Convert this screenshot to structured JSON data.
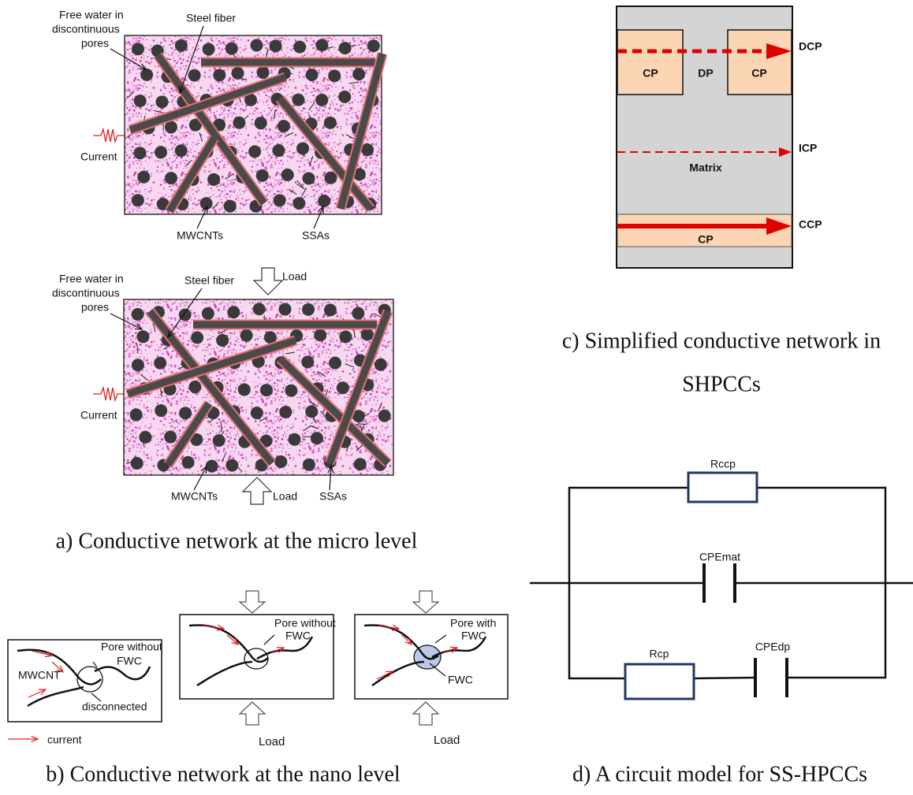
{
  "panel_a": {
    "caption": "a) Conductive network at the micro level",
    "top": {
      "free_water": [
        "Free water in",
        "discontinuous",
        "pores"
      ],
      "steel_fiber": "Steel fiber",
      "current": "Current",
      "mwcnts": "MWCNTs",
      "ssas": "SSAs"
    },
    "bottom": {
      "free_water": [
        "Free water in",
        "discontinuous",
        "pores"
      ],
      "steel_fiber": "Steel fiber",
      "current": "Current",
      "mwcnts": "MWCNTs",
      "ssas": "SSAs",
      "load_top": "Load",
      "load_bottom": "Load"
    }
  },
  "panel_b": {
    "caption": "b) Conductive network at the nano level",
    "legend": "current",
    "boxes": [
      {
        "pore": [
          "Pore without",
          "FWC"
        ],
        "mwcnt": "MWCNT",
        "disconnected": "disconnected"
      },
      {
        "pore": [
          "Pore without",
          "FWC"
        ],
        "load": "Load"
      },
      {
        "pore": [
          "Pore with",
          "FWC"
        ],
        "fwc": "FWC",
        "load": "Load"
      }
    ]
  },
  "panel_c": {
    "caption": [
      "c) Simplified conductive network in",
      "SHPCCs"
    ],
    "labels": {
      "cp_left": "CP",
      "dp": "DP",
      "cp_right": "CP",
      "dcp": "DCP",
      "icp": "ICP",
      "matrix": "Matrix",
      "ccp": "CCP",
      "cp_bottom": "CP"
    }
  },
  "panel_d": {
    "caption": "d) A circuit model for SS-HPCCs",
    "rccp": "Rccp",
    "cpemat": "CPEmat",
    "rcp": "Rcp",
    "cpedp": "CPEdp"
  }
}
